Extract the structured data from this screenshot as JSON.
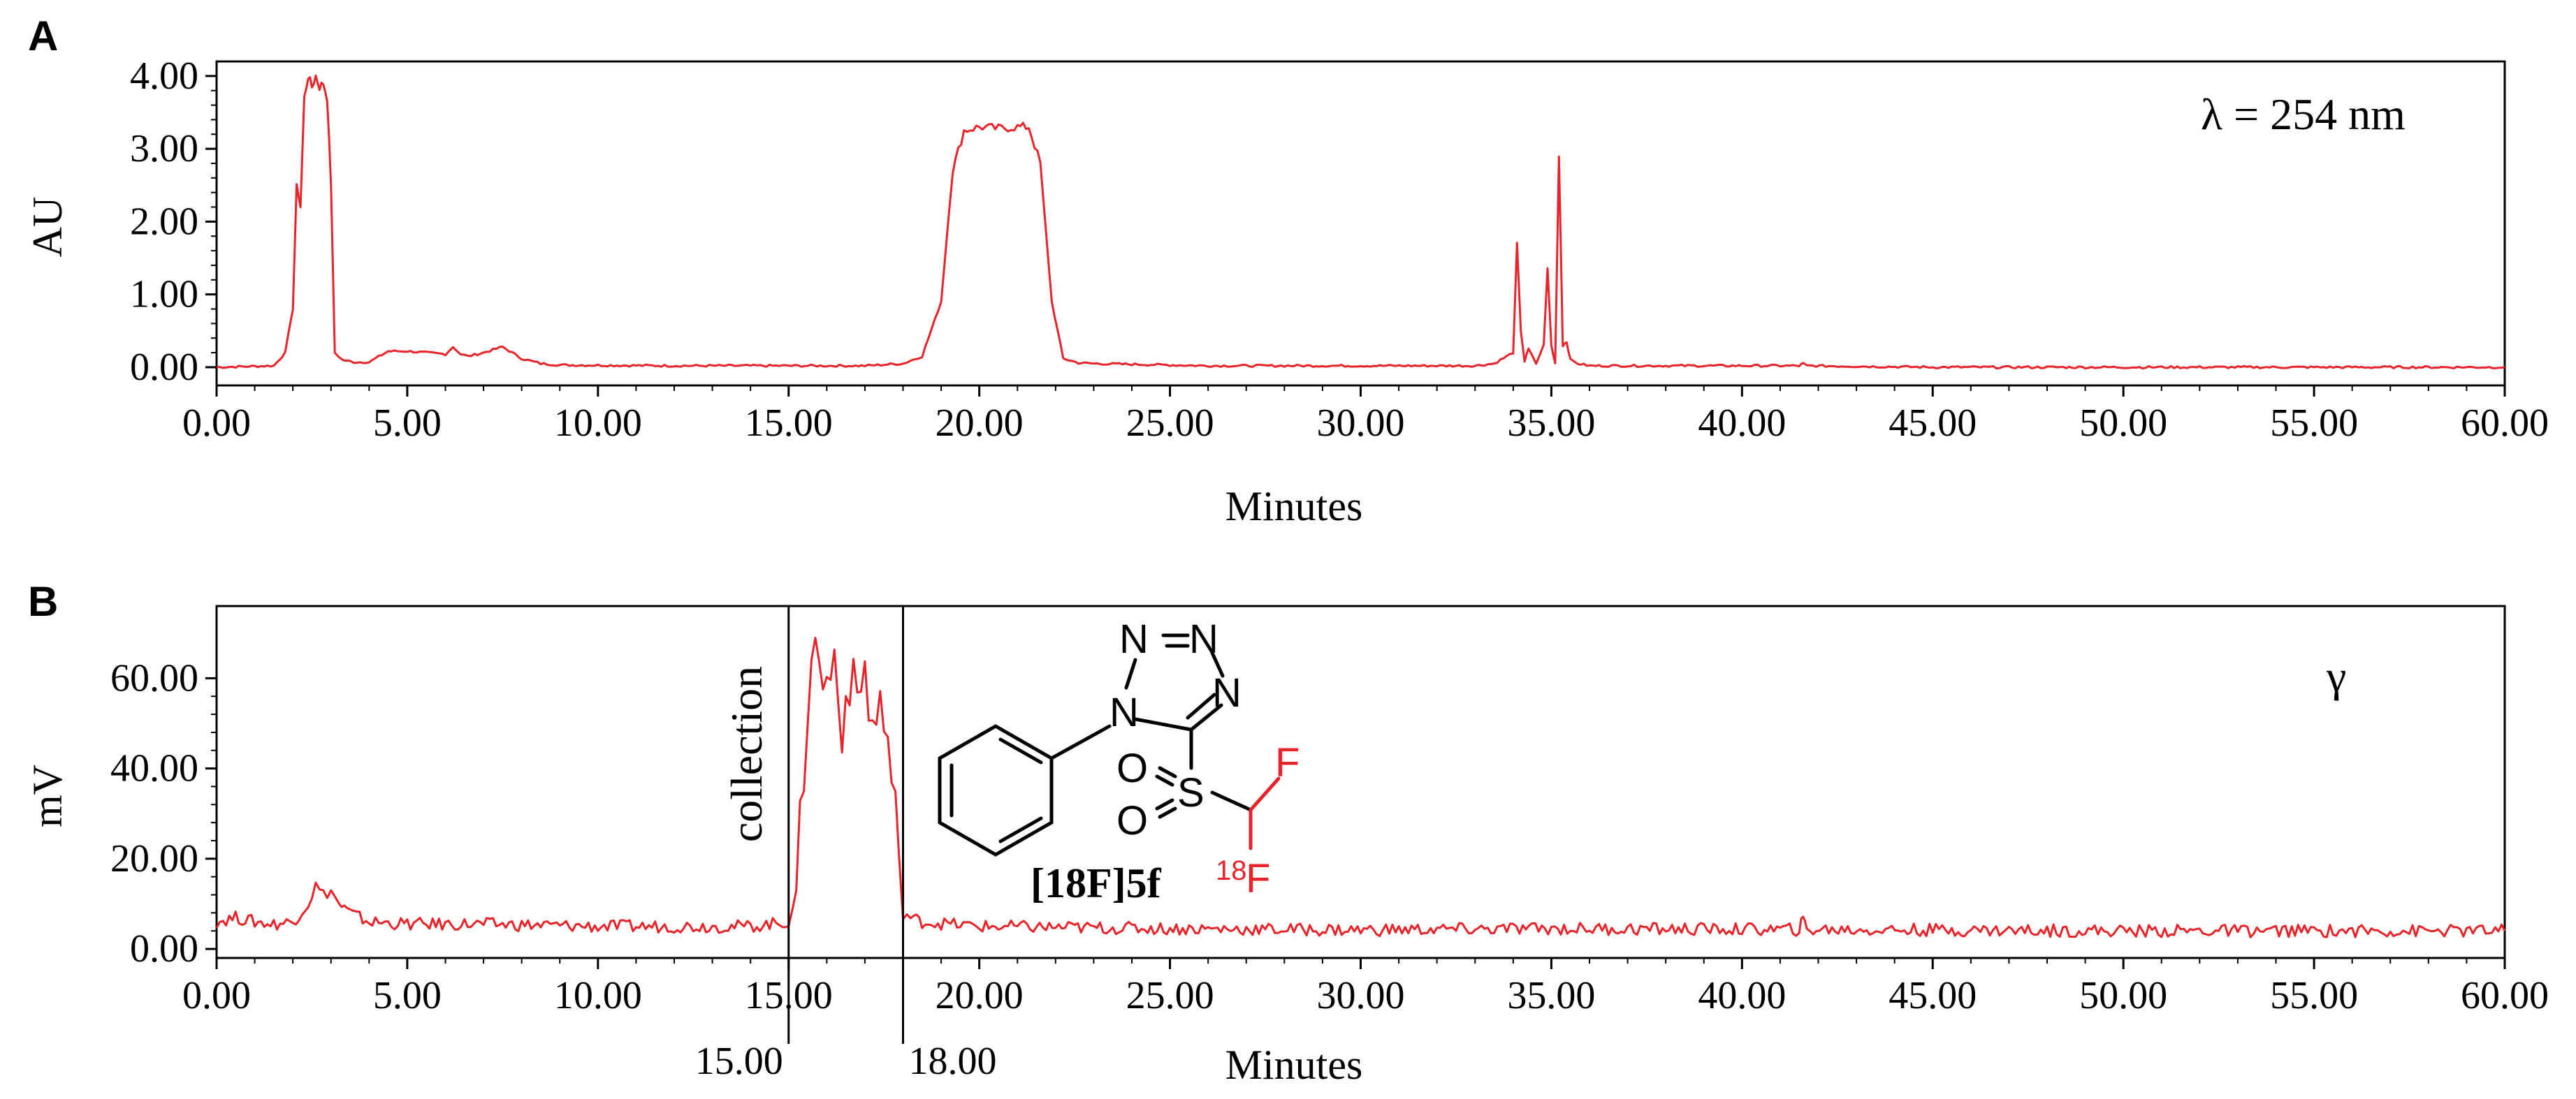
{
  "chart_data": [
    {
      "type": "line",
      "panel": "A",
      "annotation": "λ = 254 nm",
      "xlabel": "Minutes",
      "ylabel": "AU",
      "xlim": [
        0,
        60
      ],
      "ylim": [
        -0.25,
        4.2
      ],
      "xticks": [
        "0.00",
        "5.00",
        "10.00",
        "15.00",
        "20.00",
        "25.00",
        "30.00",
        "35.00",
        "40.00",
        "45.00",
        "50.00",
        "55.00",
        "60.00"
      ],
      "yticks": [
        "0.00",
        "1.00",
        "2.00",
        "3.00",
        "4.00"
      ],
      "color": "#e8242a",
      "series": [
        {
          "x": [
            0,
            1.5,
            1.8,
            2.0,
            2.1,
            2.2,
            2.3,
            2.4,
            2.5,
            2.6,
            2.7,
            2.8,
            2.9,
            3.0,
            3.1,
            3.3,
            3.6,
            4.0,
            4.5,
            5.0,
            5.5,
            6.0,
            6.2,
            6.4,
            6.6,
            7.0,
            7.5,
            8.0,
            8.5,
            9.0,
            12.0,
            15.0,
            17.0,
            18.0,
            18.5,
            19.0,
            19.3,
            19.6,
            20.0,
            20.5,
            21.0,
            21.3,
            21.6,
            21.9,
            22.2,
            22.6,
            23.0,
            24.0,
            26.0,
            30.0,
            33.0,
            33.5,
            34.0,
            34.1,
            34.2,
            34.3,
            34.4,
            34.6,
            34.8,
            34.9,
            35.0,
            35.1,
            35.2,
            35.3,
            35.4,
            35.5,
            35.7,
            36.0,
            38.0,
            41.5,
            41.6,
            41.7,
            45.0,
            50.0,
            55.0,
            60.0
          ],
          "y": [
            0.0,
            0.02,
            0.2,
            0.8,
            2.5,
            2.2,
            3.7,
            4.0,
            3.85,
            4.0,
            3.85,
            3.9,
            3.7,
            2.5,
            0.2,
            0.1,
            0.07,
            0.07,
            0.22,
            0.22,
            0.2,
            0.18,
            0.28,
            0.18,
            0.15,
            0.2,
            0.28,
            0.12,
            0.05,
            0.03,
            0.02,
            0.02,
            0.02,
            0.05,
            0.15,
            0.9,
            2.7,
            3.25,
            3.3,
            3.28,
            3.3,
            3.3,
            2.8,
            0.9,
            0.12,
            0.06,
            0.05,
            0.04,
            0.02,
            0.02,
            0.02,
            0.05,
            0.2,
            1.7,
            0.5,
            0.08,
            0.25,
            0.05,
            0.3,
            1.35,
            0.3,
            0.05,
            2.9,
            0.3,
            0.35,
            0.1,
            0.05,
            0.02,
            0.02,
            0.02,
            0.05,
            0.02,
            0.0,
            0.0,
            0.0,
            0.0
          ]
        }
      ]
    },
    {
      "type": "line",
      "panel": "B",
      "annotation": "γ",
      "xlabel": "Minutes",
      "ylabel": "mV",
      "xlim": [
        0,
        60
      ],
      "ylim": [
        -2,
        76
      ],
      "xticks": [
        "0.00",
        "5.00",
        "10.00",
        "15.00",
        "20.00",
        "25.00",
        "30.00",
        "35.00",
        "40.00",
        "45.00",
        "50.00",
        "55.00",
        "60.00"
      ],
      "yticks": [
        "0.00",
        "20.00",
        "40.00",
        "60.00"
      ],
      "color": "#e8242a",
      "markers": [
        {
          "x": 15.0,
          "label": "15.00"
        },
        {
          "x": 18.0,
          "label": "18.00"
        }
      ],
      "marker_text": "collection",
      "series": [
        {
          "x": [
            0,
            0.5,
            1.0,
            1.5,
            2.0,
            2.4,
            2.6,
            2.8,
            3.0,
            3.2,
            3.5,
            4.0,
            5.0,
            7.0,
            10.0,
            14.0,
            15.0,
            15.2,
            15.4,
            15.6,
            15.8,
            16.0,
            16.2,
            16.4,
            16.6,
            16.8,
            17.0,
            17.2,
            17.4,
            17.6,
            17.8,
            18.0,
            18.2,
            18.5,
            20.0,
            25.0,
            30.0,
            35.0,
            41.5,
            41.6,
            41.7,
            45.0,
            50.0,
            55.0,
            60.0
          ],
          "y": [
            6,
            7,
            6,
            5.5,
            6,
            10,
            14,
            12,
            13,
            10,
            8,
            6,
            5.5,
            5.5,
            5,
            5,
            6,
            12,
            40,
            68,
            63,
            58,
            65,
            50,
            60,
            55,
            62,
            48,
            55,
            45,
            30,
            8,
            7,
            6,
            5,
            4.5,
            4.2,
            4.5,
            4.3,
            6.5,
            4.3,
            4.2,
            4.0,
            4.0,
            4.0
          ]
        }
      ],
      "structure": {
        "atoms": [
          "N",
          "N",
          "N",
          "N",
          "O",
          "S",
          "O",
          "F",
          "F"
        ],
        "isotope": "18",
        "compound_label": "[18F]5f"
      }
    }
  ]
}
